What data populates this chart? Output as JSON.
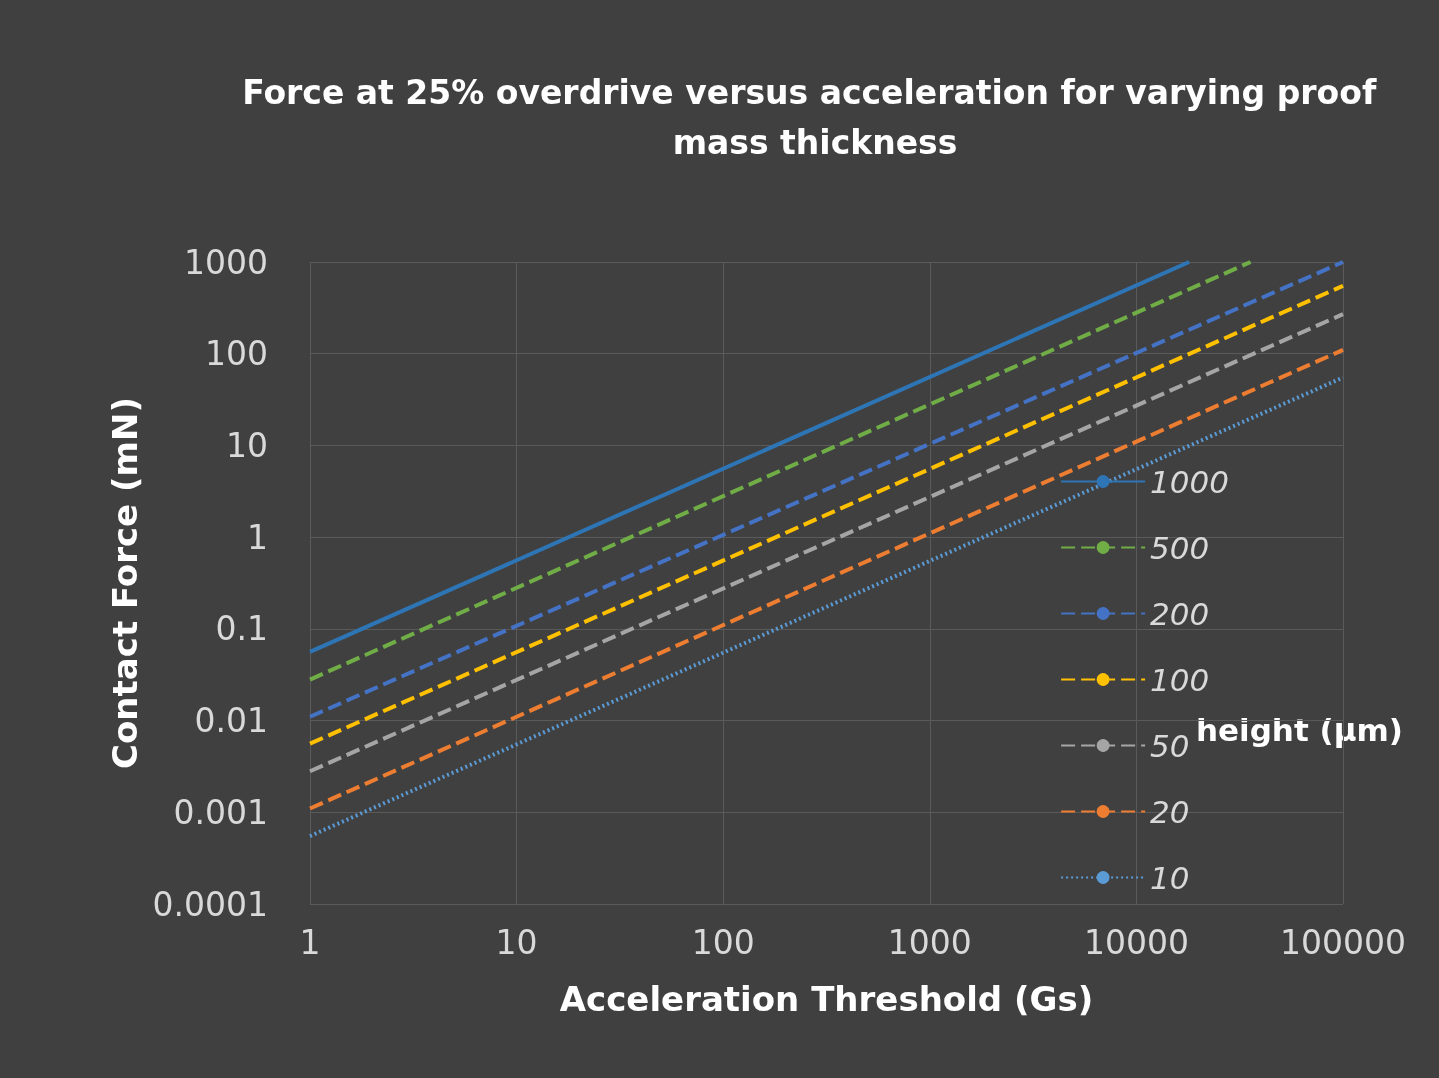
{
  "chart_data": {
    "type": "line",
    "title": "Force at 25% overdrive versus acceleration for varying proof mass thickness",
    "xlabel": "Acceleration Threshold (Gs)",
    "ylabel": "Contact Force (mN)",
    "legend_title": "height (μm)",
    "log": "xy",
    "grid": true,
    "legend": "bottom right",
    "marker": "none",
    "xlim": [
      1,
      100000
    ],
    "xticks": [
      1,
      10,
      100,
      1000,
      10000,
      100000
    ],
    "ylim": [
      0.0001,
      1000
    ],
    "yticks": [
      0.0001,
      0.001,
      0.01,
      0.1,
      1,
      10,
      100,
      1000
    ],
    "series": [
      {
        "name": "1000",
        "color": "#2e75b6",
        "line_style": "solid",
        "x": [
          1,
          18000
        ],
        "values": [
          0.056,
          1000
        ]
      },
      {
        "name": "500",
        "color": "#70ad47",
        "line_style": "dashed",
        "x": [
          1,
          35700
        ],
        "values": [
          0.028,
          1000
        ]
      },
      {
        "name": "200",
        "color": "#4472c4",
        "line_style": "dashed",
        "x": [
          1,
          100000
        ],
        "values": [
          0.011,
          1000
        ]
      },
      {
        "name": "100",
        "color": "#ffc000",
        "line_style": "dashed",
        "x": [
          1,
          100000
        ],
        "values": [
          0.0056,
          550
        ]
      },
      {
        "name": "50",
        "color": "#a5a5a5",
        "line_style": "dashed",
        "x": [
          1,
          100000
        ],
        "values": [
          0.0028,
          270
        ]
      },
      {
        "name": "20",
        "color": "#ed7d31",
        "line_style": "dashed",
        "x": [
          1,
          100000
        ],
        "values": [
          0.0011,
          110
        ]
      },
      {
        "name": "10",
        "color": "#5b9bd5",
        "line_style": "dotted",
        "x": [
          1,
          100000
        ],
        "values": [
          0.00055,
          55
        ]
      }
    ]
  }
}
